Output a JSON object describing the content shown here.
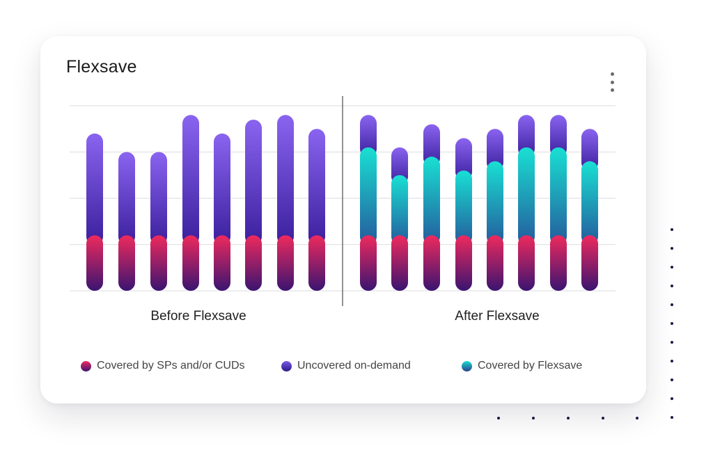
{
  "card": {
    "title": "Flexsave"
  },
  "colors": {
    "covered_top": "#ee2a5e",
    "covered_bottom": "#3a1470",
    "uncovered_top": "#8a64f0",
    "uncovered_bottom": "#3a1f9c",
    "flexsave_top": "#19e0d3",
    "flexsave_bottom": "#245a9c",
    "gridline": "#e2e2e8",
    "divider": "#6f6f6f",
    "dots": "#1b1a4a"
  },
  "icons": {
    "menu": "kebab-menu-icon"
  },
  "chart_data": {
    "type": "bar",
    "stacked": true,
    "grid": true,
    "legend_position": "bottom",
    "ylim": [
      0,
      4
    ],
    "groups": [
      {
        "label": "Before Flexsave",
        "series": [
          {
            "name": "Covered by SPs and/or CUDs",
            "values": [
              1.2,
              1.2,
              1.2,
              1.2,
              1.2,
              1.2,
              1.2,
              1.2
            ]
          },
          {
            "name": "Covered by Flexsave",
            "values": [
              0,
              0,
              0,
              0,
              0,
              0,
              0,
              0
            ]
          },
          {
            "name": "Uncovered on-demand",
            "values": [
              2.2,
              1.8,
              1.8,
              2.6,
              2.2,
              2.5,
              2.6,
              2.3
            ]
          }
        ]
      },
      {
        "label": "After Flexsave",
        "series": [
          {
            "name": "Covered by SPs and/or CUDs",
            "values": [
              1.2,
              1.2,
              1.2,
              1.2,
              1.2,
              1.2,
              1.2,
              1.2
            ]
          },
          {
            "name": "Covered by Flexsave",
            "values": [
              1.9,
              1.3,
              1.7,
              1.4,
              1.6,
              1.9,
              1.9,
              1.6
            ]
          },
          {
            "name": "Uncovered on-demand",
            "values": [
              0.7,
              0.6,
              0.7,
              0.7,
              0.7,
              0.7,
              0.7,
              0.7
            ]
          }
        ]
      }
    ]
  },
  "legend": [
    {
      "label": "Covered by SPs and/or CUDs"
    },
    {
      "label": "Uncovered on-demand"
    },
    {
      "label": "Covered by Flexsave"
    }
  ]
}
